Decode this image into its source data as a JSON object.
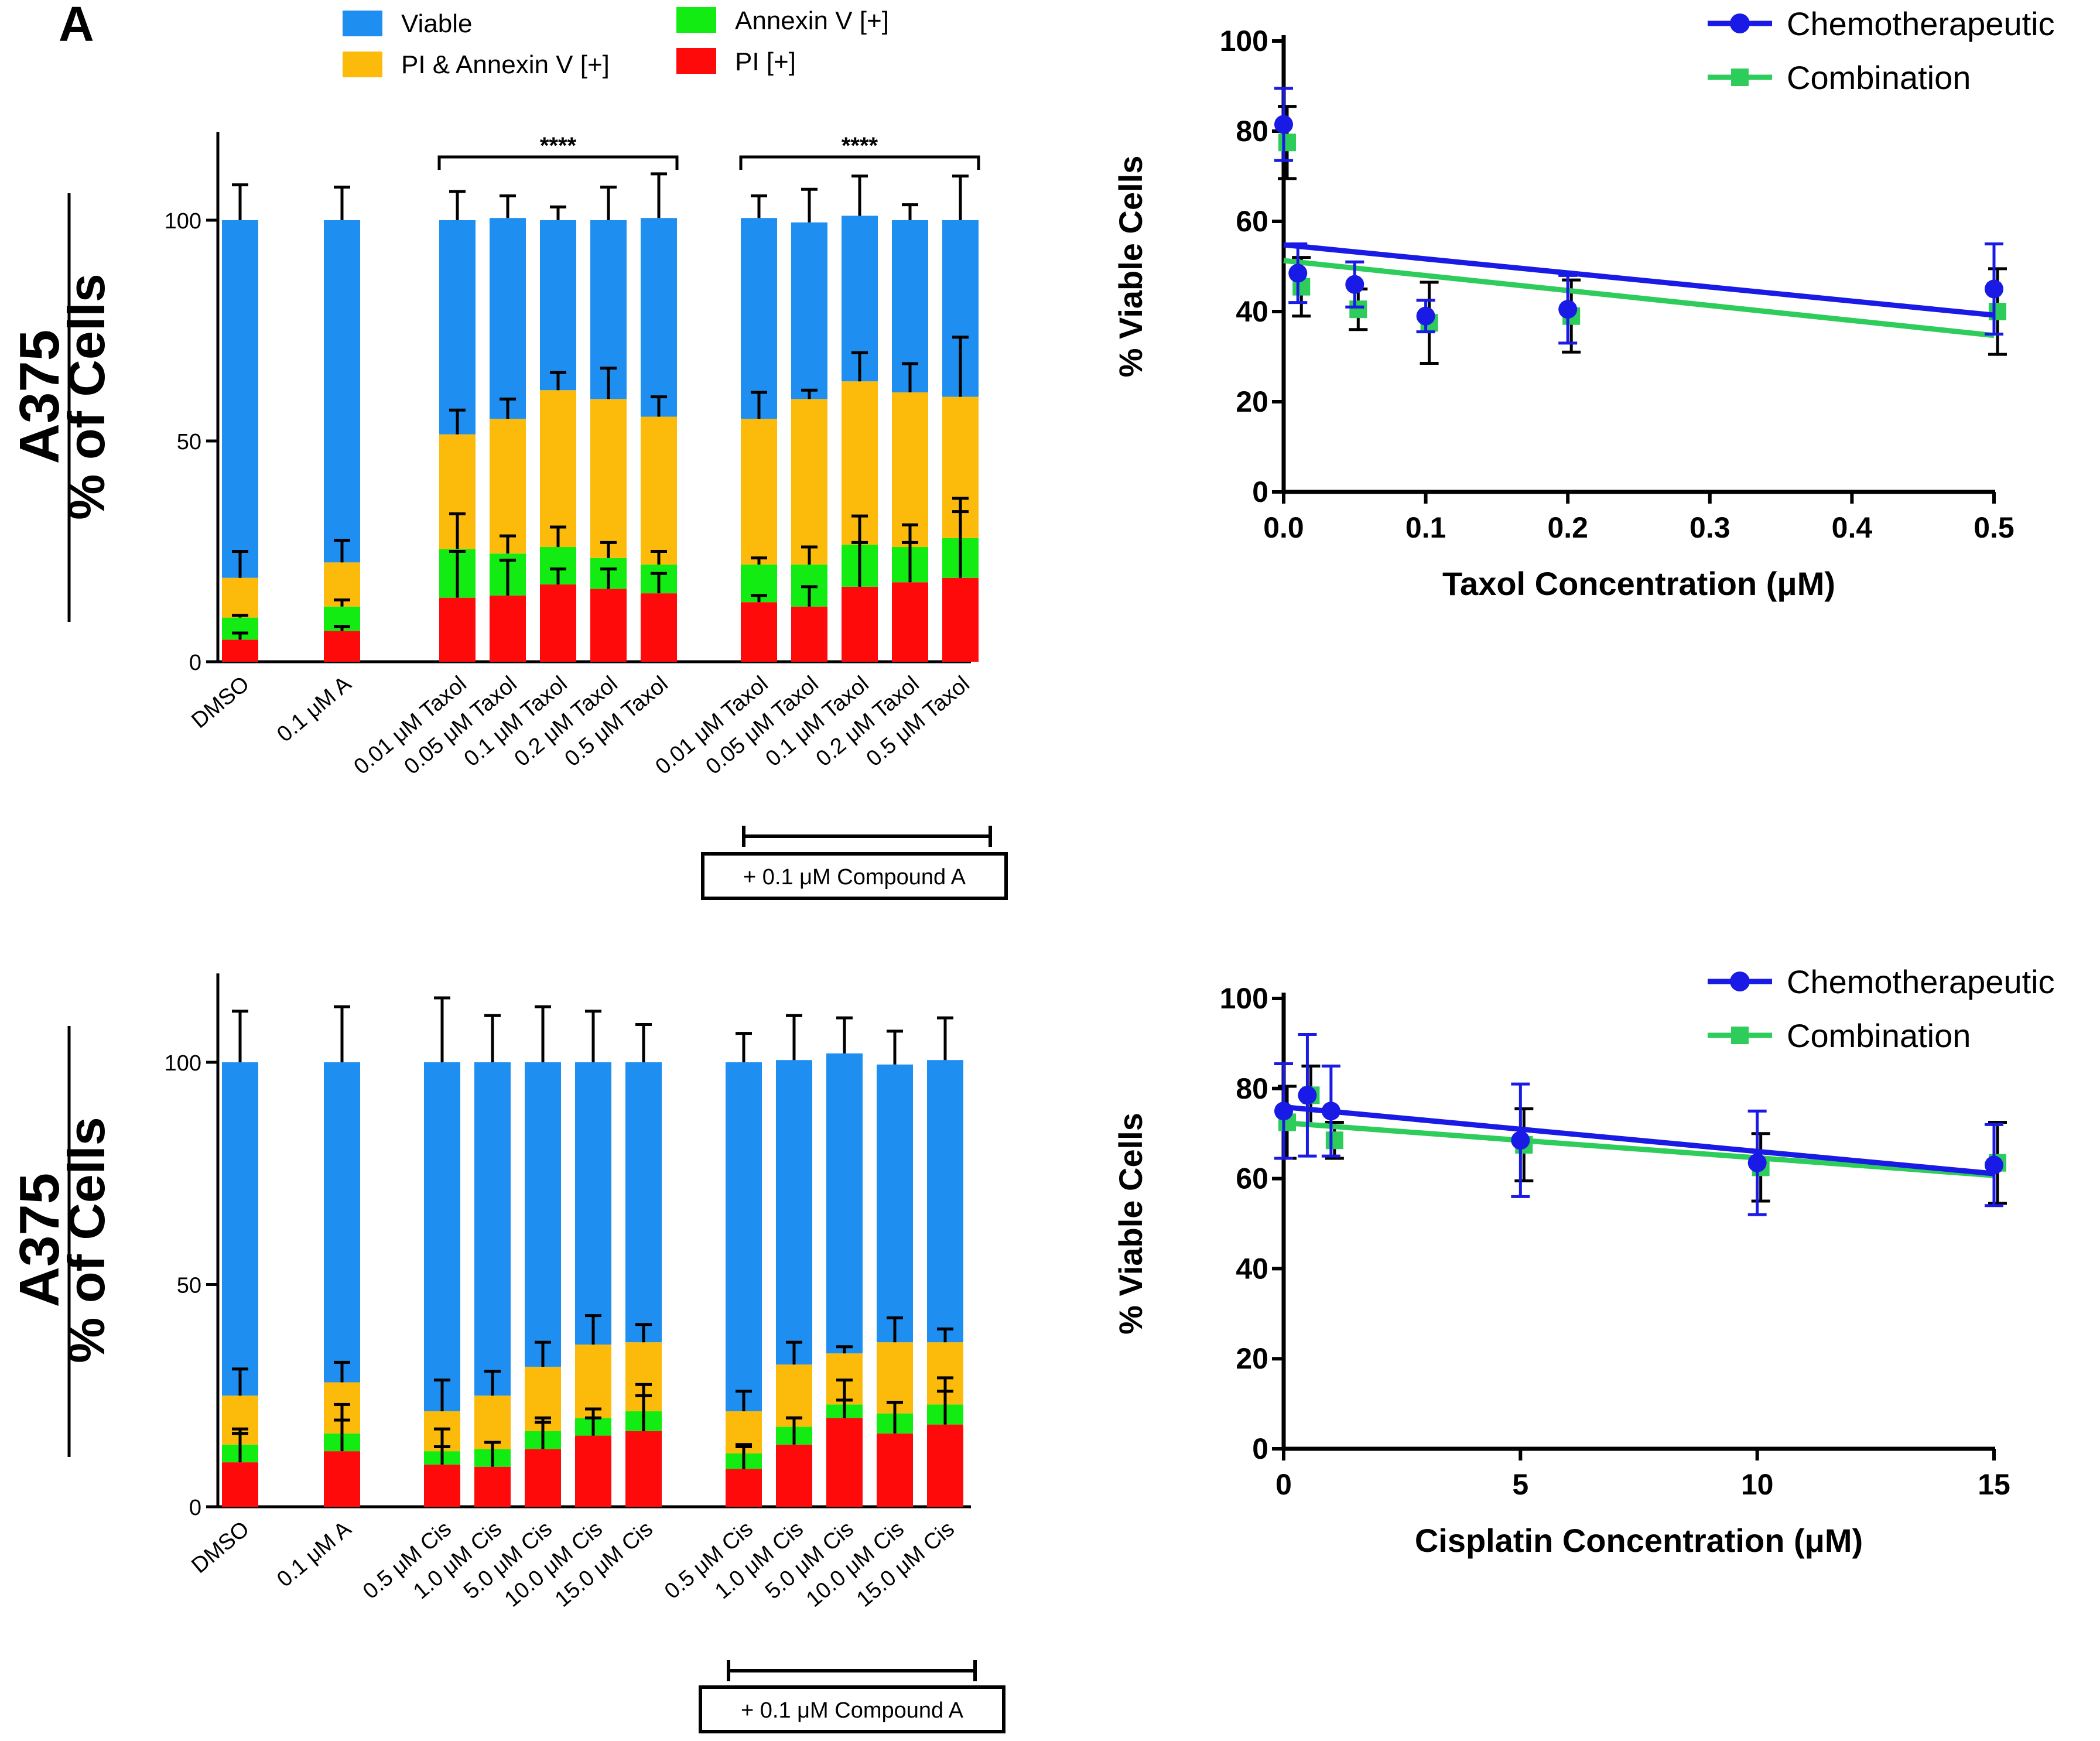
{
  "panel_label": "A",
  "colors": {
    "viable": "#1e8ff0",
    "pi_annexin": "#fcbb0a",
    "annexin": "#13ec13",
    "pi": "#ff0a0a",
    "chemo_line": "#1a1ae6",
    "combo_line": "#2ecc5a",
    "axis": "#000000"
  },
  "legend": {
    "items": [
      {
        "key": "viable",
        "label": "Viable"
      },
      {
        "key": "pi_annexin",
        "label": "PI & Annexin V [+]"
      },
      {
        "key": "annexin",
        "label": "Annexin V [+]"
      },
      {
        "key": "pi",
        "label": "PI [+]"
      }
    ]
  },
  "chart_data": [
    {
      "type": "bar",
      "id": "taxol-stacked",
      "row_label": "A375",
      "ylabel": "% of Cells",
      "ylim": [
        0,
        120
      ],
      "yticks": [
        0,
        50,
        100
      ],
      "stack_order": [
        "pi",
        "annexin",
        "pi_annexin",
        "viable"
      ],
      "categories": [
        "DMSO",
        "0.1 μM A",
        "0.01 μM Taxol",
        "0.05 μM Taxol",
        "0.1 μM Taxol",
        "0.2 μM Taxol",
        "0.5 μM Taxol",
        "0.01 μM Taxol",
        "0.05 μM Taxol",
        "0.1 μM Taxol",
        "0.2 μM Taxol",
        "0.5 μM Taxol"
      ],
      "series": [
        {
          "name": "PI [+]",
          "key": "pi",
          "values": [
            5,
            7,
            14.5,
            15,
            17.5,
            16.5,
            15.5,
            13.5,
            12.5,
            17,
            18,
            19
          ]
        },
        {
          "name": "Annexin V [+]",
          "key": "annexin",
          "values": [
            5,
            5.5,
            11,
            9.5,
            8.5,
            7,
            6.5,
            8.5,
            9.5,
            9.5,
            8,
            9
          ]
        },
        {
          "name": "PI & Annexin V [+]",
          "key": "pi_annexin",
          "values": [
            9,
            10,
            26,
            30.5,
            35.5,
            36,
            33.5,
            33,
            37.5,
            37,
            35,
            32
          ]
        },
        {
          "name": "Viable",
          "key": "viable",
          "values": [
            81,
            77.5,
            48.5,
            45.5,
            38.5,
            40.5,
            45,
            45.5,
            40,
            37.5,
            39,
            40
          ]
        }
      ],
      "error_tops": {
        "pi": [
          6.5,
          8,
          25,
          23,
          21,
          21,
          20,
          15,
          17,
          27,
          27,
          34
        ],
        "annexin": [
          10.5,
          14,
          33.5,
          28.5,
          30.5,
          27,
          25,
          23.5,
          26,
          33,
          31,
          37
        ],
        "pi_annexin": [
          25,
          27.5,
          57,
          59.5,
          65.5,
          66.5,
          60,
          61,
          61.5,
          70,
          67.5,
          73.5
        ],
        "viable": [
          108,
          107.5,
          106.5,
          105.5,
          103,
          107.5,
          110.5,
          105.5,
          107,
          110,
          103.5,
          110
        ]
      },
      "significance": [
        {
          "label": "****",
          "from": 2,
          "to": 6
        },
        {
          "label": "****",
          "from": 7,
          "to": 11
        }
      ],
      "group_bracket": {
        "from": 7,
        "to": 11,
        "label": "+ 0.1 μM Compound A"
      }
    },
    {
      "type": "line",
      "id": "taxol-viability",
      "title": "",
      "xlabel": "Taxol Concentration (μM)",
      "ylabel": "% Viable Cells",
      "xlim": [
        0,
        0.5
      ],
      "ylim": [
        0,
        100
      ],
      "xticks": [
        "0.0",
        "0.1",
        "0.2",
        "0.3",
        "0.4",
        "0.5"
      ],
      "yticks": [
        0,
        20,
        40,
        60,
        80,
        100
      ],
      "series": [
        {
          "name": "Chemotherapeutic",
          "key": "chemo",
          "x": [
            0,
            0.01,
            0.05,
            0.1,
            0.2,
            0.5
          ],
          "y": [
            81.5,
            48.5,
            46,
            39,
            40.5,
            45
          ],
          "err": [
            8,
            6.5,
            5,
            3.5,
            7.5,
            10
          ],
          "fit": [
            [
              0,
              54.8
            ],
            [
              0.5,
              39.2
            ]
          ]
        },
        {
          "name": "Combination",
          "key": "combo",
          "x": [
            0,
            0.01,
            0.05,
            0.1,
            0.2,
            0.5
          ],
          "y": [
            77.5,
            45.5,
            40.5,
            37.5,
            39,
            40
          ],
          "err": [
            8,
            6.5,
            4.5,
            9,
            8,
            9.5
          ],
          "fit": [
            [
              0,
              51.3
            ],
            [
              0.5,
              34.7
            ]
          ]
        }
      ]
    },
    {
      "type": "bar",
      "id": "cisplatin-stacked",
      "row_label": "A375",
      "ylabel": "% of Cells",
      "ylim": [
        0,
        120
      ],
      "yticks": [
        0,
        50,
        100
      ],
      "stack_order": [
        "pi",
        "annexin",
        "pi_annexin",
        "viable"
      ],
      "categories": [
        "DMSO",
        "0.1 μM A",
        "0.5 μM Cis",
        "1.0 μM Cis",
        "5.0 μM Cis",
        "10.0 μM Cis",
        "15.0 μM Cis",
        "0.5 μM Cis",
        "1.0 μM Cis",
        "5.0 μM Cis",
        "10.0 μM Cis",
        "15.0 μM Cis"
      ],
      "series": [
        {
          "name": "PI [+]",
          "key": "pi",
          "values": [
            10,
            12.5,
            9.5,
            9,
            13,
            16,
            17,
            8.5,
            14,
            20,
            16.5,
            18.5
          ]
        },
        {
          "name": "Annexin V [+]",
          "key": "annexin",
          "values": [
            4,
            4,
            3,
            4,
            4,
            4,
            4.5,
            3.5,
            4,
            3,
            4.5,
            4.5
          ]
        },
        {
          "name": "PI & Annexin V [+]",
          "key": "pi_annexin",
          "values": [
            11,
            11.5,
            9,
            12,
            14.5,
            16.5,
            15.5,
            9.5,
            14,
            11.5,
            16,
            14
          ]
        },
        {
          "name": "Viable",
          "key": "viable",
          "values": [
            75,
            72,
            78.5,
            75,
            68.5,
            63.5,
            63,
            78.5,
            68.5,
            67.5,
            62.5,
            63.5
          ]
        }
      ],
      "error_tops": {
        "pi": [
          16.5,
          23,
          17.5,
          14.5,
          20,
          20,
          25,
          13.5,
          20,
          28.5,
          23.5,
          29
        ],
        "annexin": [
          17.5,
          19.5,
          13.5,
          14.5,
          19,
          22,
          27.5,
          14,
          20,
          24,
          23.5,
          26
        ],
        "pi_annexin": [
          31,
          32.5,
          28.5,
          30.5,
          37,
          43,
          41,
          26,
          37,
          36,
          42.5,
          40
        ],
        "viable": [
          111.5,
          112.5,
          114.5,
          110.5,
          112.5,
          111.5,
          108.5,
          106.5,
          110.5,
          110,
          107,
          110
        ]
      },
      "group_bracket": {
        "from": 7,
        "to": 11,
        "label": "+ 0.1 μM Compound A"
      }
    },
    {
      "type": "line",
      "id": "cisplatin-viability",
      "title": "",
      "xlabel": "Cisplatin Concentration (μM)",
      "ylabel": "% Viable Cells",
      "xlim": [
        0,
        15
      ],
      "ylim": [
        0,
        100
      ],
      "xticks": [
        "0",
        "5",
        "10",
        "15"
      ],
      "yticks": [
        0,
        20,
        40,
        60,
        80,
        100
      ],
      "series": [
        {
          "name": "Chemotherapeutic",
          "key": "chemo",
          "x": [
            0,
            0.5,
            1,
            5,
            10,
            15
          ],
          "y": [
            75,
            78.5,
            75,
            68.5,
            63.5,
            63
          ],
          "err": [
            10.5,
            13.5,
            10,
            12.5,
            11.5,
            9
          ],
          "fit": [
            [
              0,
              75.9
            ],
            [
              15,
              61.1
            ]
          ]
        },
        {
          "name": "Combination",
          "key": "combo",
          "x": [
            0,
            0.5,
            1,
            5,
            10,
            15
          ],
          "y": [
            72.5,
            78.5,
            68.5,
            67.5,
            62.5,
            63.5
          ],
          "err": [
            8,
            6.5,
            4,
            8,
            7.5,
            9
          ],
          "fit": [
            [
              0,
              72.4
            ],
            [
              15,
              60.7
            ]
          ]
        }
      ]
    }
  ]
}
